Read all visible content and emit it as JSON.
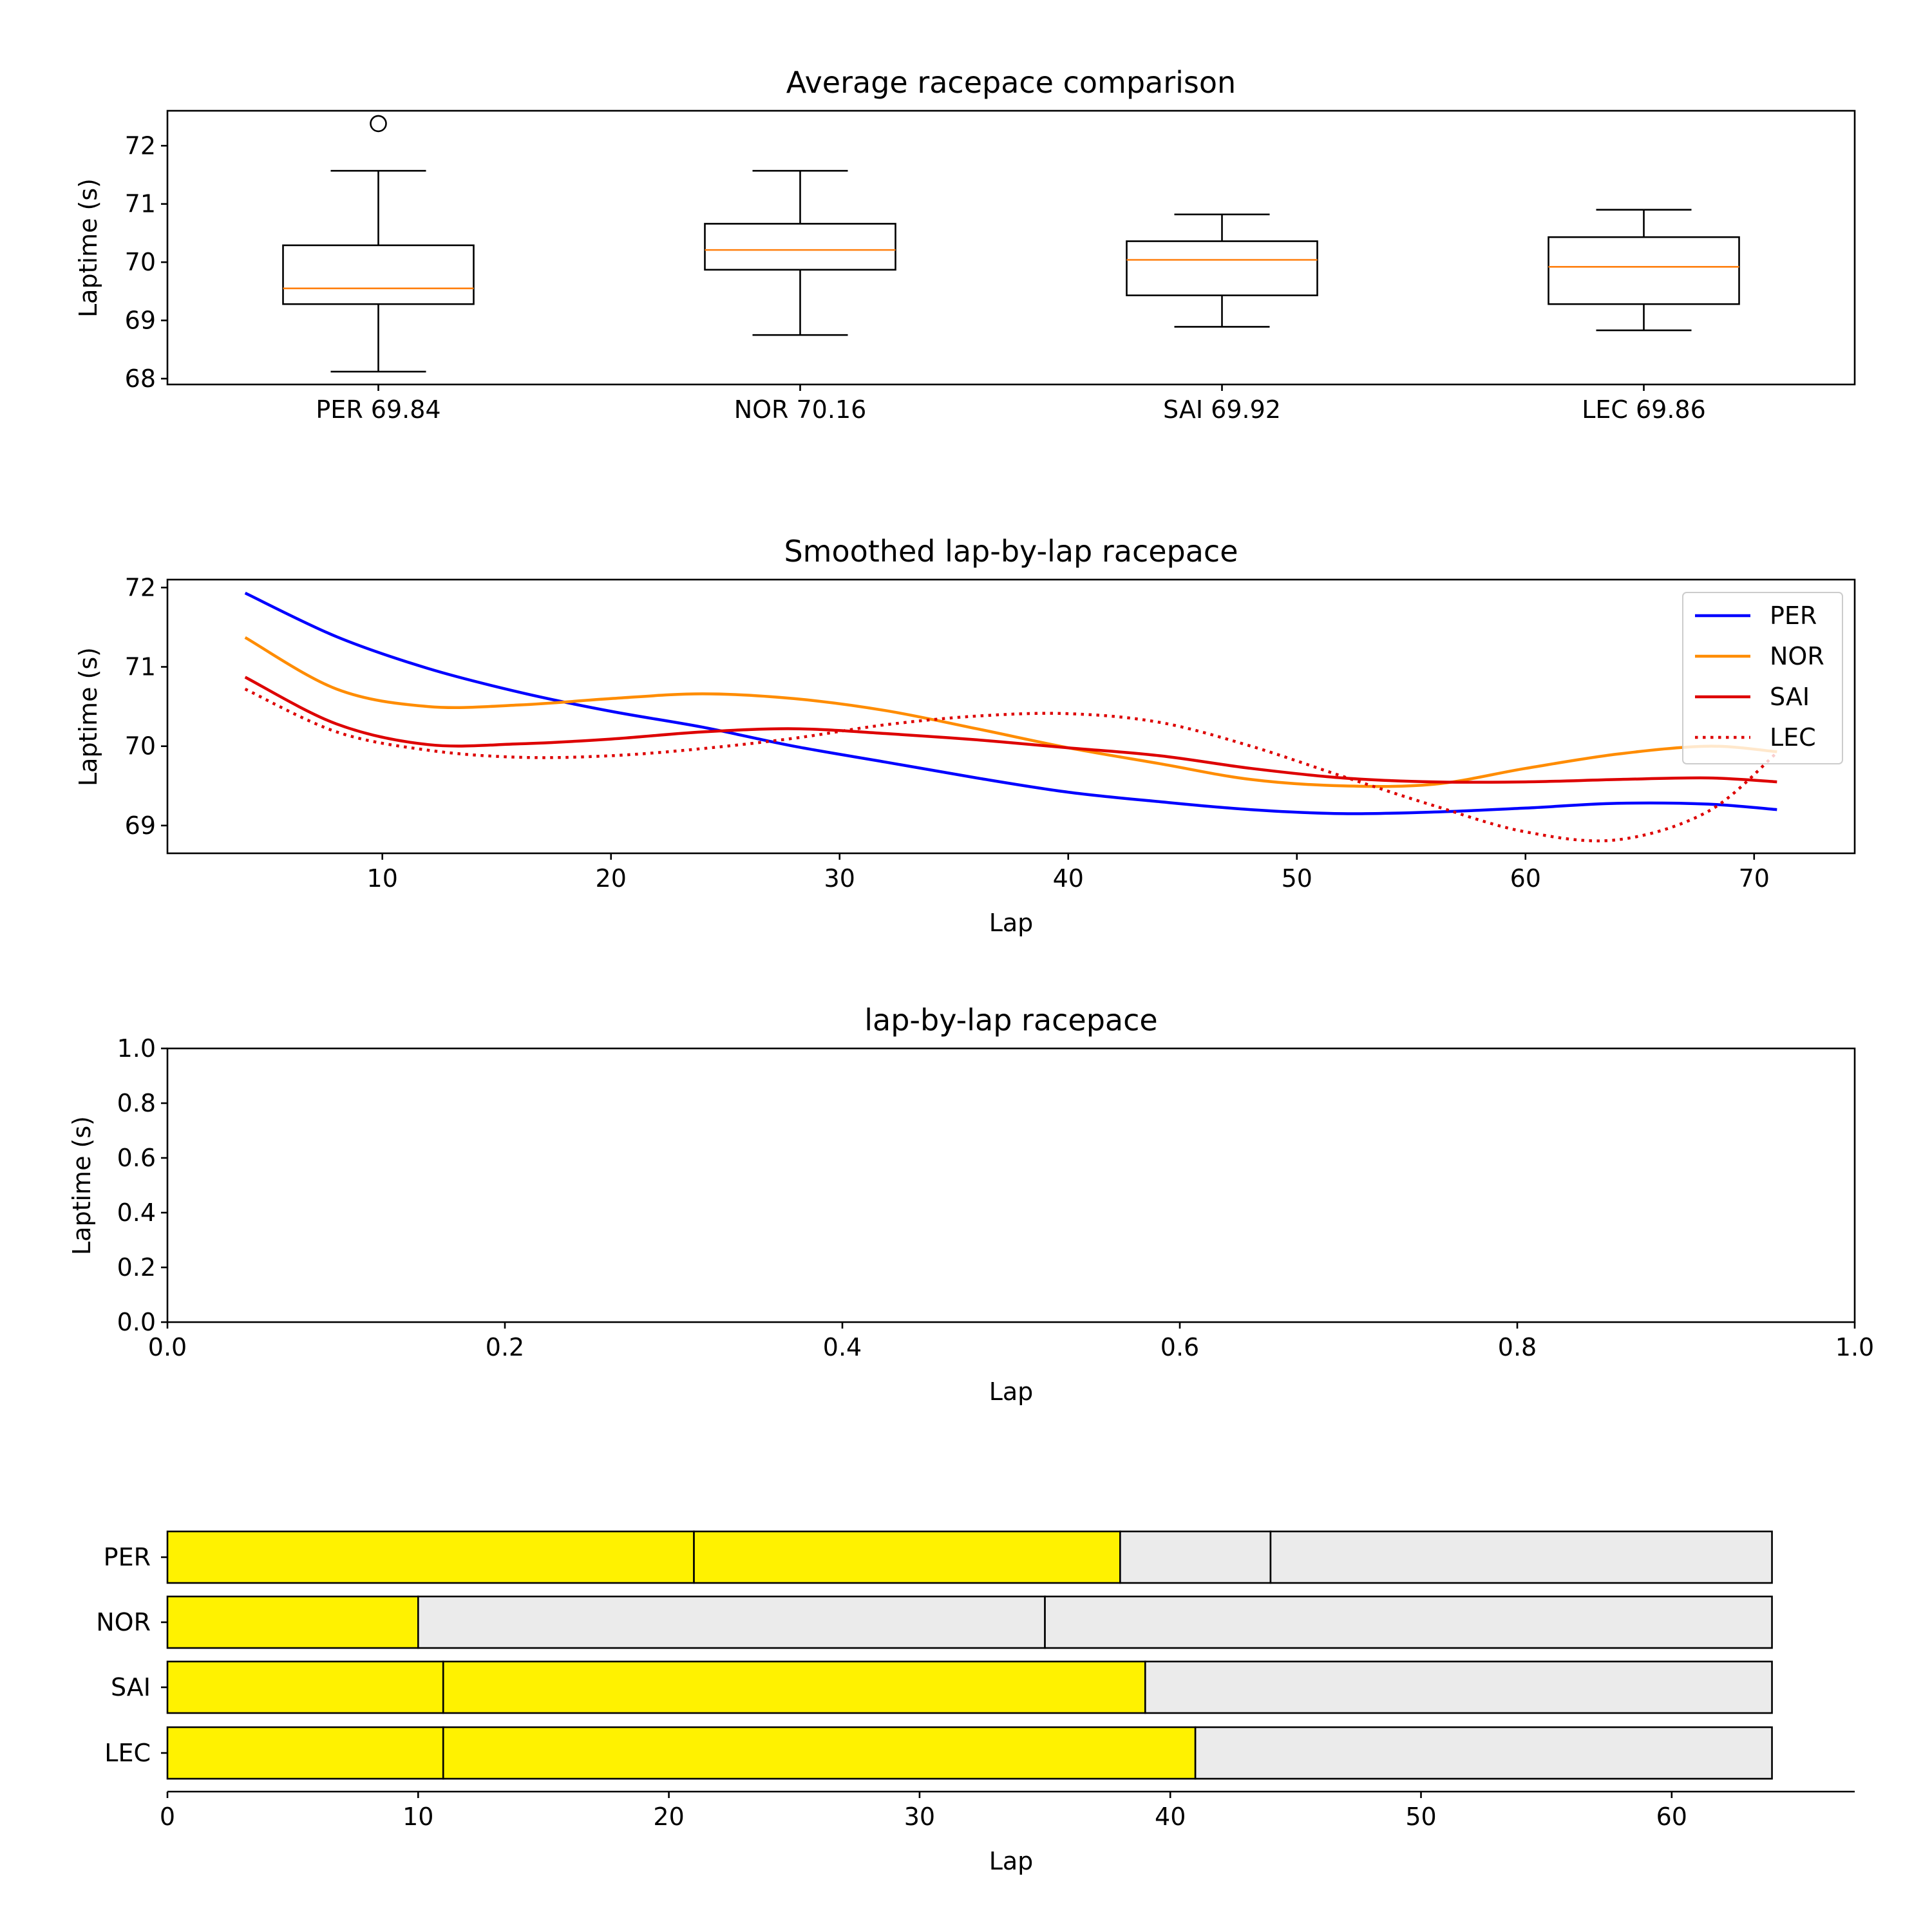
{
  "chart_data": [
    {
      "type": "box",
      "title": "Average racepace comparison",
      "xlabel": "",
      "ylabel": "Laptime (s)",
      "ylim": [
        67.9,
        72.6
      ],
      "yticks": [
        68,
        69,
        70,
        71,
        72
      ],
      "categories": [
        "PER 69.84",
        "NOR 70.16",
        "SAI 69.92",
        "LEC 69.86"
      ],
      "boxes": [
        {
          "whisker_low": 68.12,
          "q1": 69.28,
          "median": 69.55,
          "q3": 70.29,
          "whisker_high": 71.57,
          "fliers": [
            72.38
          ]
        },
        {
          "whisker_low": 68.75,
          "q1": 69.87,
          "median": 70.21,
          "q3": 70.66,
          "whisker_high": 71.57,
          "fliers": []
        },
        {
          "whisker_low": 68.89,
          "q1": 69.43,
          "median": 70.04,
          "q3": 70.36,
          "whisker_high": 70.82,
          "fliers": []
        },
        {
          "whisker_low": 68.83,
          "q1": 69.28,
          "median": 69.92,
          "q3": 70.43,
          "whisker_high": 70.9,
          "fliers": []
        }
      ],
      "colors": {
        "box": "#000000",
        "median": "#ff7f0e"
      }
    },
    {
      "type": "line",
      "title": "Smoothed lap-by-lap racepace",
      "xlabel": "Lap",
      "ylabel": "Laptime (s)",
      "xlim": [
        0.6,
        74.4
      ],
      "ylim": [
        68.65,
        72.1
      ],
      "xticks": [
        10,
        20,
        30,
        40,
        50,
        60,
        70
      ],
      "yticks": [
        69,
        70,
        71,
        72
      ],
      "legend": "top-right",
      "x": [
        4,
        8,
        12,
        16,
        20,
        24,
        28,
        32,
        36,
        40,
        44,
        48,
        52,
        56,
        60,
        64,
        68,
        71
      ],
      "series": [
        {
          "name": "PER",
          "color": "#0000ff",
          "dash": "solid",
          "values": [
            71.93,
            71.38,
            70.98,
            70.68,
            70.44,
            70.24,
            70.0,
            69.8,
            69.6,
            69.42,
            69.3,
            69.2,
            69.15,
            69.17,
            69.22,
            69.28,
            69.27,
            69.2
          ]
        },
        {
          "name": "NOR",
          "color": "#ff8c00",
          "dash": "solid",
          "values": [
            71.37,
            70.72,
            70.5,
            70.52,
            70.6,
            70.66,
            70.6,
            70.45,
            70.22,
            69.98,
            69.78,
            69.58,
            69.5,
            69.52,
            69.72,
            69.9,
            70.0,
            69.93
          ]
        },
        {
          "name": "SAI",
          "color": "#dd0000",
          "dash": "solid",
          "values": [
            70.87,
            70.28,
            70.02,
            70.03,
            70.09,
            70.18,
            70.22,
            70.16,
            70.08,
            69.98,
            69.88,
            69.72,
            69.6,
            69.55,
            69.55,
            69.58,
            69.6,
            69.55
          ]
        },
        {
          "name": "LEC",
          "color": "#dd0000",
          "dash": "dotted",
          "values": [
            70.72,
            70.18,
            69.95,
            69.86,
            69.88,
            69.97,
            70.1,
            70.27,
            70.38,
            70.41,
            70.3,
            70.0,
            69.62,
            69.25,
            68.92,
            68.82,
            69.18,
            69.92
          ]
        }
      ]
    },
    {
      "type": "line",
      "title": "lap-by-lap racepace",
      "xlabel": "Lap",
      "ylabel": "Laptime (s)",
      "xlim": [
        0,
        1
      ],
      "ylim": [
        0,
        1
      ],
      "xticks": [
        0.0,
        0.2,
        0.4,
        0.6,
        0.8,
        1.0
      ],
      "yticks": [
        0.0,
        0.2,
        0.4,
        0.6,
        0.8,
        1.0
      ],
      "series": []
    },
    {
      "type": "bar",
      "orientation": "horizontal",
      "title": "",
      "xlabel": "Lap",
      "ylabel": "",
      "xlim": [
        0,
        67.3
      ],
      "xticks": [
        0,
        10,
        20,
        30,
        40,
        50,
        60
      ],
      "categories": [
        "PER",
        "NOR",
        "SAI",
        "LEC"
      ],
      "stints": [
        [
          {
            "start": 0,
            "end": 21,
            "compound": "soft"
          },
          {
            "start": 21,
            "end": 38,
            "compound": "soft"
          },
          {
            "start": 38,
            "end": 44,
            "compound": "hard"
          },
          {
            "start": 44,
            "end": 64,
            "compound": "hard"
          }
        ],
        [
          {
            "start": 0,
            "end": 10,
            "compound": "soft"
          },
          {
            "start": 10,
            "end": 35,
            "compound": "hard"
          },
          {
            "start": 35,
            "end": 64,
            "compound": "hard"
          }
        ],
        [
          {
            "start": 0,
            "end": 11,
            "compound": "soft"
          },
          {
            "start": 11,
            "end": 39,
            "compound": "soft"
          },
          {
            "start": 39,
            "end": 64,
            "compound": "hard"
          }
        ],
        [
          {
            "start": 0,
            "end": 11,
            "compound": "soft"
          },
          {
            "start": 11,
            "end": 41,
            "compound": "soft"
          },
          {
            "start": 41,
            "end": 64,
            "compound": "hard"
          }
        ]
      ],
      "compound_colors": {
        "soft": "#fff200",
        "hard": "#ebebeb"
      }
    }
  ]
}
